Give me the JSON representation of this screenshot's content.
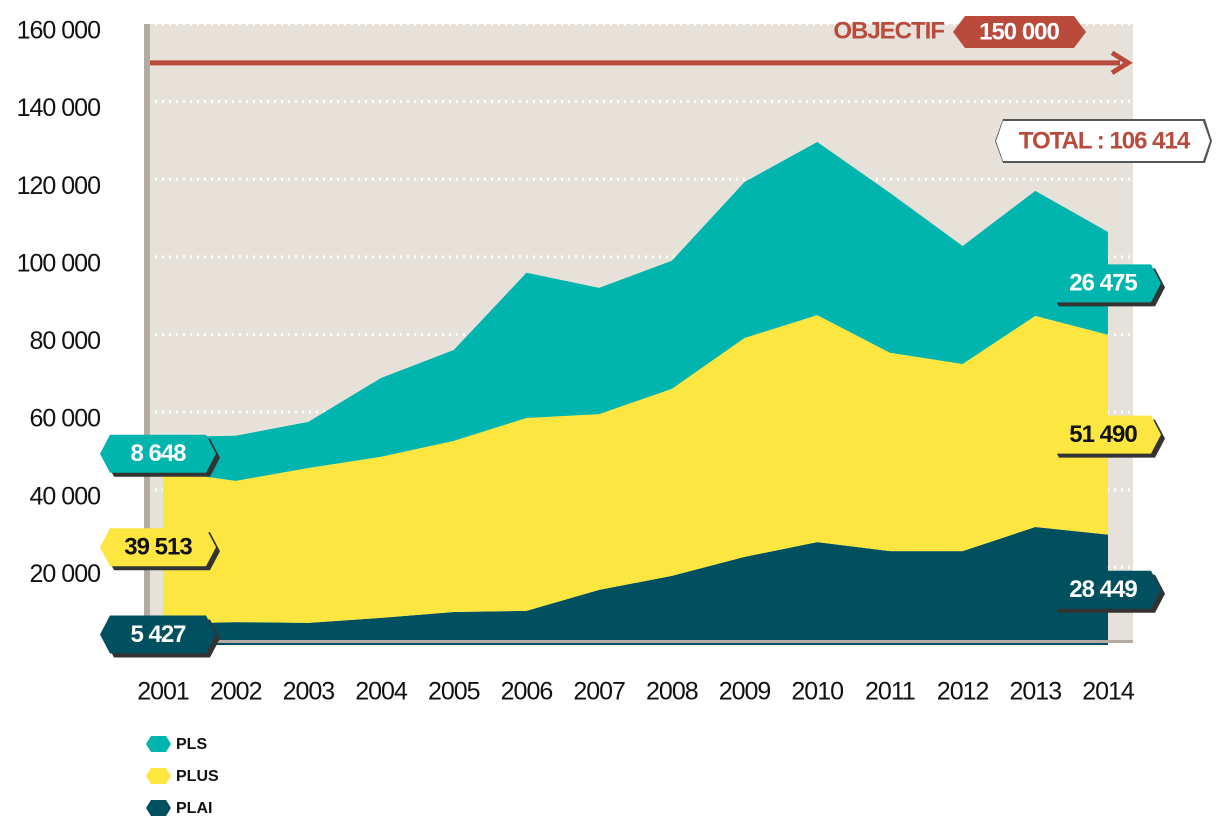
{
  "chart_data": {
    "type": "stacked_area",
    "categories": [
      "2001",
      "2002",
      "2003",
      "2004",
      "2005",
      "2006",
      "2007",
      "2008",
      "2009",
      "2010",
      "2011",
      "2012",
      "2013",
      "2014"
    ],
    "series": [
      {
        "name": "PLS",
        "color": "#00b5ad",
        "values": [
          8648,
          11600,
          11900,
          20300,
          23400,
          37400,
          32500,
          33000,
          40200,
          44600,
          41200,
          30400,
          32200,
          26475
        ],
        "value_labels": {
          "0": "8 648",
          "13": "26 475"
        }
      },
      {
        "name": "PLUS",
        "color": "#fde63f",
        "values": [
          39513,
          36400,
          39900,
          41500,
          44100,
          49700,
          45300,
          48200,
          56400,
          58500,
          51100,
          48200,
          54400,
          51490
        ],
        "value_labels": {
          "0": "39 513",
          "13": "51 490"
        }
      },
      {
        "name": "PLAI",
        "color": "#00505f",
        "values": [
          5427,
          5900,
          5700,
          7000,
          8500,
          8800,
          14200,
          17800,
          22700,
          26500,
          24200,
          24200,
          30400,
          28449
        ],
        "value_labels": {
          "0": "5 427",
          "13": "28 449"
        }
      }
    ],
    "ylim": [
      0,
      160000
    ],
    "yticks": [
      {
        "value": 20000,
        "label": "20 000"
      },
      {
        "value": 40000,
        "label": "40 000"
      },
      {
        "value": 60000,
        "label": "60 000"
      },
      {
        "value": 80000,
        "label": "80 000"
      },
      {
        "value": 100000,
        "label": "100 000"
      },
      {
        "value": 120000,
        "label": "120 000"
      },
      {
        "value": 140000,
        "label": "140 000"
      },
      {
        "value": 160000,
        "label": "160 000"
      }
    ],
    "grid": true,
    "target": {
      "label": "OBJECTIF",
      "value": 150000,
      "value_label": "150 000"
    },
    "total_label": "TOTAL : 106 414"
  }
}
